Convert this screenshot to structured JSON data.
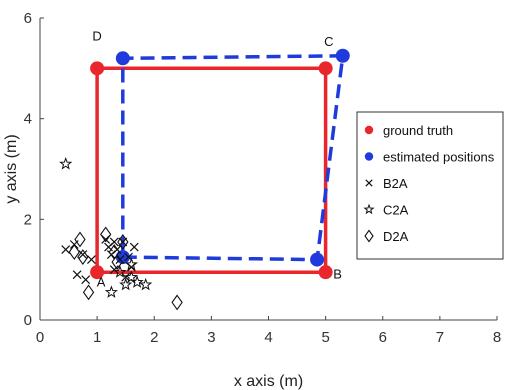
{
  "chart_data": {
    "type": "scatter",
    "title": "",
    "xlabel": "x axis (m)",
    "ylabel": "y axis (m)",
    "xlim": [
      0,
      8
    ],
    "ylim": [
      0,
      6
    ],
    "x_ticks": [
      0,
      1,
      2,
      3,
      4,
      5,
      6,
      7,
      8
    ],
    "y_ticks": [
      0,
      2,
      4,
      6
    ],
    "grid": false,
    "legend_position": "right",
    "corner_labels": [
      {
        "label": "A",
        "x": 1.0,
        "y": 0.9
      },
      {
        "label": "B",
        "x": 5.0,
        "y": 0.9
      },
      {
        "label": "C",
        "x": 5.3,
        "y": 5.25
      },
      {
        "label": "D",
        "x": 1.0,
        "y": 5.0
      }
    ],
    "series": [
      {
        "name": "ground truth",
        "marker": "filled-circle",
        "line": "solid",
        "color": "#e8262b",
        "points": [
          [
            1.0,
            0.95
          ],
          [
            5.0,
            0.95
          ],
          [
            5.0,
            5.0
          ],
          [
            1.0,
            5.0
          ]
        ]
      },
      {
        "name": "estimated positions",
        "marker": "filled-circle",
        "line": "dashed",
        "color": "#1f3bdc",
        "points": [
          [
            1.45,
            1.25
          ],
          [
            4.85,
            1.2
          ],
          [
            5.3,
            5.25
          ],
          [
            1.45,
            5.2
          ]
        ]
      },
      {
        "name": "B2A",
        "marker": "x",
        "color": "#111111",
        "points": [
          [
            0.45,
            1.4
          ],
          [
            0.6,
            1.5
          ],
          [
            0.65,
            0.9
          ],
          [
            0.75,
            1.3
          ],
          [
            0.8,
            0.8
          ],
          [
            0.9,
            1.2
          ],
          [
            1.15,
            1.6
          ],
          [
            1.2,
            1.45
          ],
          [
            1.25,
            1.3
          ],
          [
            1.3,
            1.55
          ],
          [
            1.3,
            1.0
          ],
          [
            1.35,
            1.4
          ],
          [
            1.4,
            1.2
          ],
          [
            1.45,
            1.55
          ],
          [
            1.5,
            0.85
          ],
          [
            1.55,
            1.25
          ],
          [
            1.6,
            1.05
          ],
          [
            1.65,
            1.45
          ]
        ]
      },
      {
        "name": "C2A",
        "marker": "star",
        "color": "#111111",
        "points": [
          [
            0.45,
            3.1
          ],
          [
            1.25,
            0.55
          ],
          [
            1.4,
            0.95
          ],
          [
            1.5,
            0.7
          ],
          [
            1.6,
            1.1
          ],
          [
            1.7,
            0.75
          ],
          [
            1.85,
            0.7
          ],
          [
            1.6,
            0.85
          ]
        ]
      },
      {
        "name": "D2A",
        "marker": "diamond",
        "color": "#111111",
        "points": [
          [
            0.6,
            1.35
          ],
          [
            0.7,
            1.6
          ],
          [
            0.75,
            1.25
          ],
          [
            0.85,
            0.55
          ],
          [
            1.15,
            1.7
          ],
          [
            1.3,
            1.35
          ],
          [
            1.35,
            1.15
          ],
          [
            1.45,
            1.55
          ],
          [
            2.4,
            0.35
          ]
        ]
      }
    ]
  }
}
